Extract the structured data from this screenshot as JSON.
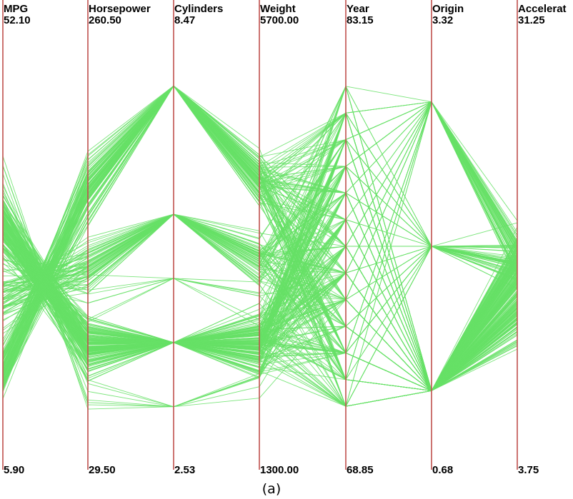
{
  "chart_data": {
    "type": "parallel_coordinates",
    "caption": "(a)",
    "line_color": "#66e066",
    "axis_color": "#c0504d",
    "axes": [
      {
        "name": "MPG",
        "max": "52.10",
        "min": "5.90"
      },
      {
        "name": "Horsepower",
        "max": "260.50",
        "min": "29.50"
      },
      {
        "name": "Cylinders",
        "max": "8.47",
        "min": "2.53"
      },
      {
        "name": "Weight",
        "max": "5700.00",
        "min": "1300.00"
      },
      {
        "name": "Year",
        "max": "83.15",
        "min": "68.85"
      },
      {
        "name": "Origin",
        "max": "3.32",
        "min": "0.68"
      },
      {
        "name": "Accelerat",
        "max": "31.25",
        "min": "3.75"
      }
    ],
    "axis_ranges": [
      [
        5.9,
        52.1
      ],
      [
        29.5,
        260.5
      ],
      [
        2.53,
        8.47
      ],
      [
        1300,
        5700
      ],
      [
        68.85,
        83.15
      ],
      [
        0.68,
        3.32
      ],
      [
        3.75,
        31.25
      ]
    ],
    "discrete_levels": {
      "Cylinders": [
        3,
        4,
        5,
        6,
        8
      ],
      "Origin": [
        1,
        2,
        3
      ]
    }
  }
}
